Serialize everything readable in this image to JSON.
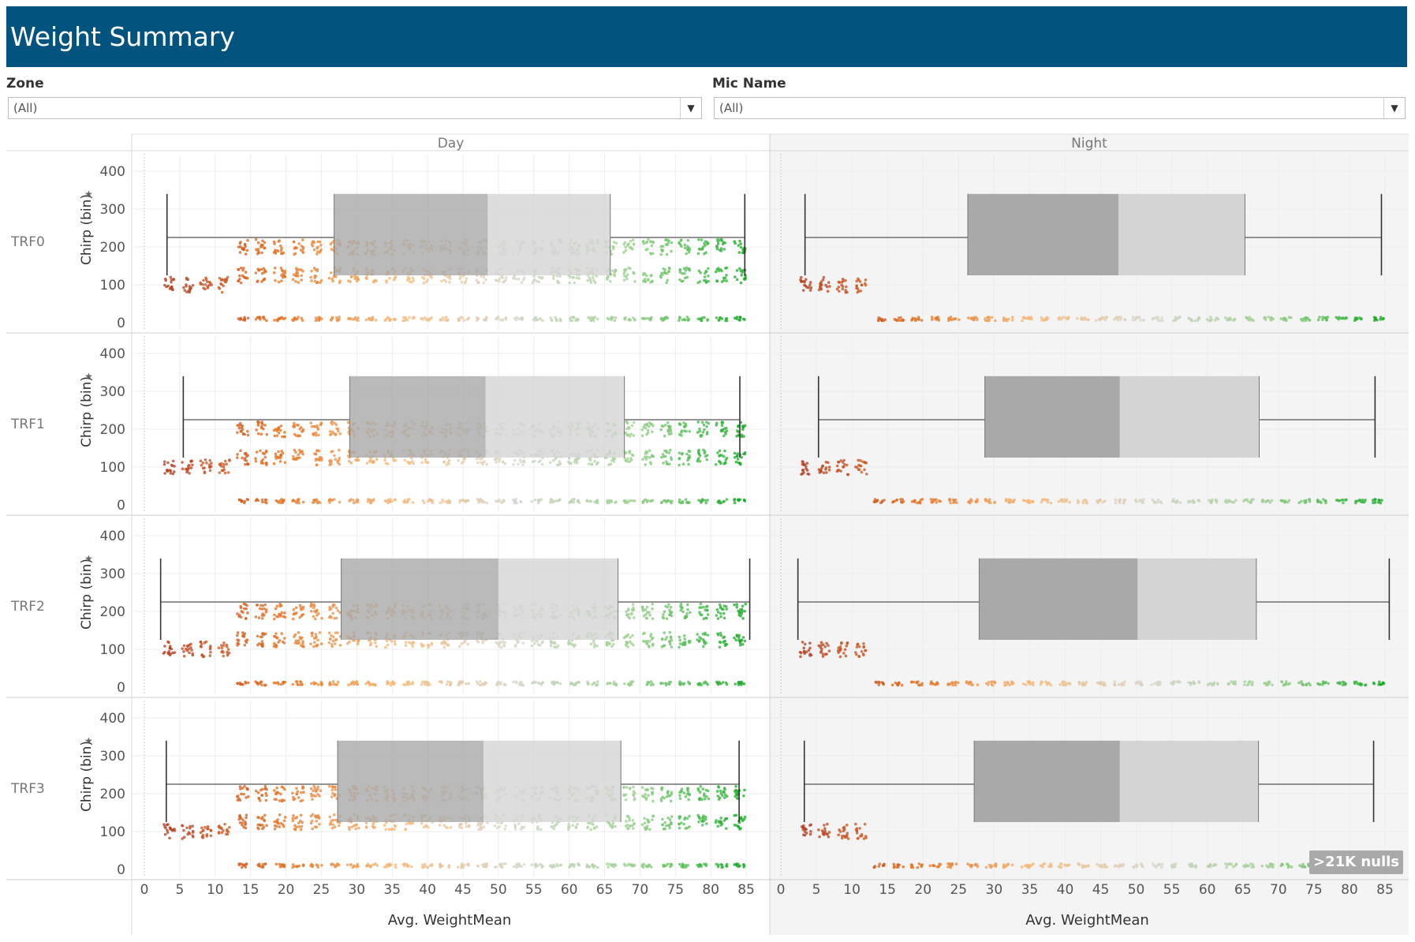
{
  "header": {
    "title": "Weight Summary"
  },
  "filters": [
    {
      "label": "Zone",
      "value": "(All)"
    },
    {
      "label": "Mic Name",
      "value": "(All)"
    }
  ],
  "nulls_badge": ">21K nulls",
  "colors": {
    "header_bg": "#02547f",
    "box_dark": "#a9a9a9",
    "box_light": "#d4d4d4",
    "night_bg": "#f4f4f4",
    "gradient": [
      "#b03a1e",
      "#e2711f",
      "#f5b979",
      "#d6d6cc",
      "#9ccf8f",
      "#0fa81e"
    ]
  },
  "chart_data": {
    "type": "scatter",
    "subtype": "jitter scatter with box plot",
    "columns": [
      "Day",
      "Night"
    ],
    "rows": [
      "TRF0",
      "TRF1",
      "TRF2",
      "TRF3"
    ],
    "xlabel": "Avg. WeightMean",
    "ylabel": "Chirp (bin)",
    "xlim": [
      0,
      88
    ],
    "ylim": [
      0,
      430
    ],
    "xticks": [
      0,
      5,
      10,
      15,
      20,
      25,
      30,
      35,
      40,
      45,
      50,
      55,
      60,
      65,
      70,
      75,
      80,
      85
    ],
    "yticks": [
      0,
      100,
      200,
      300,
      400
    ],
    "bands_y": [
      0,
      100,
      125,
      200
    ],
    "boxplots": [
      {
        "column": "Day",
        "row": "TRF0",
        "whisker_low": 3.2,
        "q1": 26.8,
        "median": 48.5,
        "q3": 65.8,
        "whisker_high": 84.8
      },
      {
        "column": "Day",
        "row": "TRF1",
        "whisker_low": 5.5,
        "q1": 29.0,
        "median": 48.2,
        "q3": 67.8,
        "whisker_high": 84.1
      },
      {
        "column": "Day",
        "row": "TRF2",
        "whisker_low": 2.3,
        "q1": 27.8,
        "median": 50.0,
        "q3": 66.9,
        "whisker_high": 85.5
      },
      {
        "column": "Day",
        "row": "TRF3",
        "whisker_low": 3.1,
        "q1": 27.3,
        "median": 47.9,
        "q3": 67.3,
        "whisker_high": 84.0
      },
      {
        "column": "Night",
        "row": "TRF0",
        "whisker_low": 3.4,
        "q1": 26.3,
        "median": 47.5,
        "q3": 65.3,
        "whisker_high": 84.5
      },
      {
        "column": "Night",
        "row": "TRF1",
        "whisker_low": 5.3,
        "q1": 28.7,
        "median": 47.7,
        "q3": 67.3,
        "whisker_high": 83.6
      },
      {
        "column": "Night",
        "row": "TRF2",
        "whisker_low": 2.4,
        "q1": 27.9,
        "median": 50.2,
        "q3": 66.9,
        "whisker_high": 85.6
      },
      {
        "column": "Night",
        "row": "TRF3",
        "whisker_low": 3.3,
        "q1": 27.2,
        "median": 47.7,
        "q3": 67.2,
        "whisker_high": 83.4
      }
    ],
    "box_y_range": [
      125,
      340
    ],
    "whisker_y": 225
  }
}
